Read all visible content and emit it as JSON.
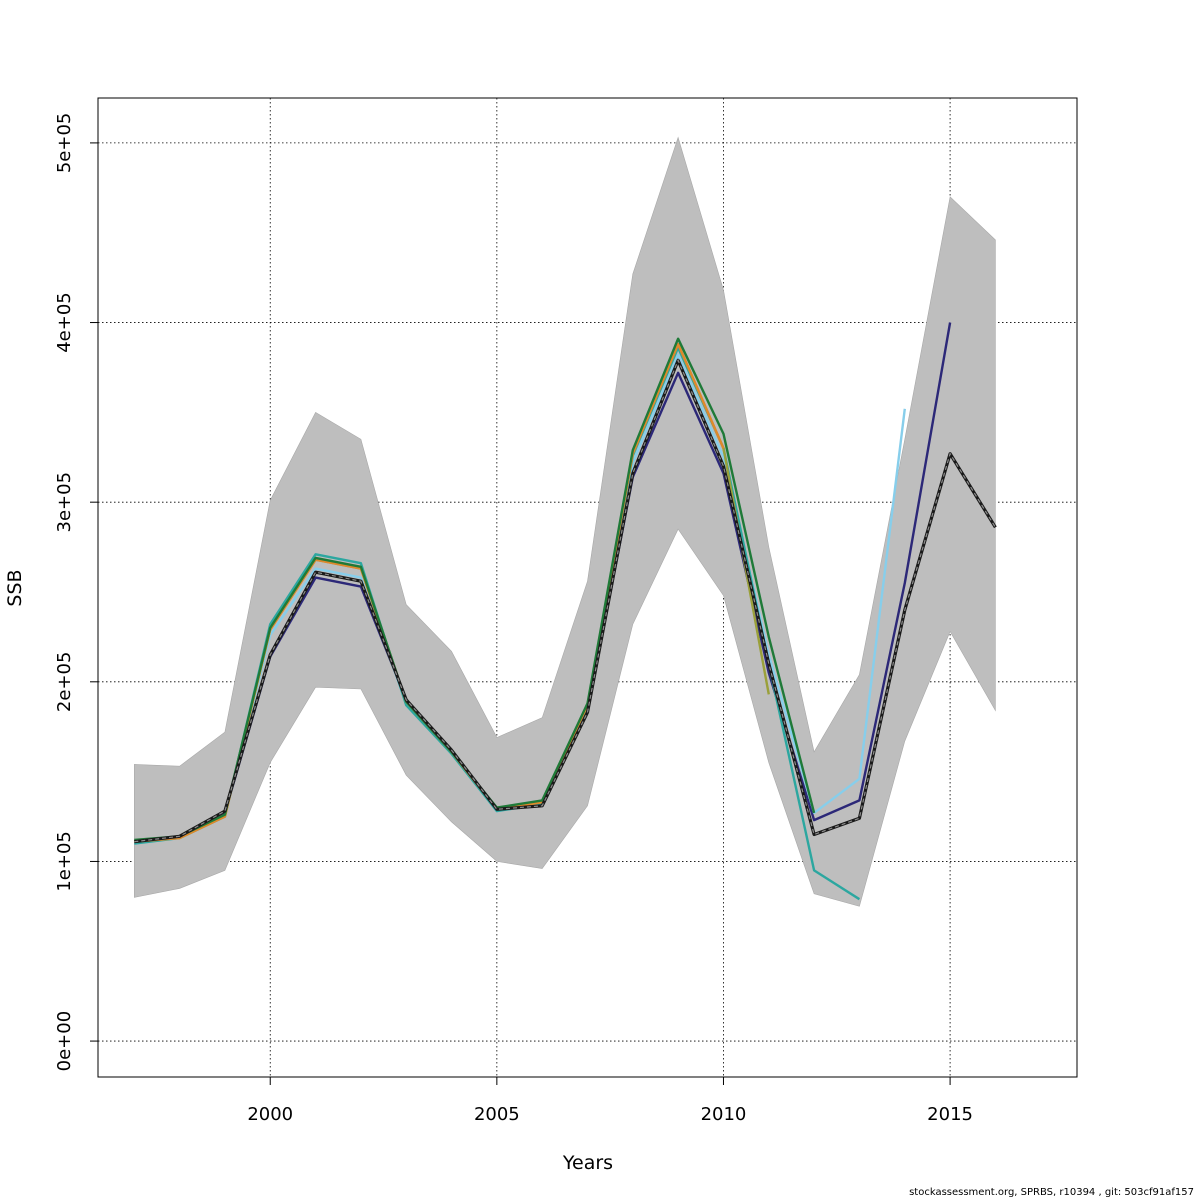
{
  "chart_data": {
    "type": "line",
    "xlabel": "Years",
    "ylabel": "SSB",
    "xlim": [
      1996.2,
      2017.8
    ],
    "ylim": [
      -20000,
      525000
    ],
    "x_ticks": [
      2000,
      2005,
      2010,
      2015
    ],
    "x_tick_labels": [
      "2000",
      "2005",
      "2010",
      "2015"
    ],
    "y_ticks": [
      0,
      100000,
      200000,
      300000,
      400000,
      500000
    ],
    "y_tick_labels": [
      "0e+00",
      "1e+05",
      "2e+05",
      "3e+05",
      "4e+05",
      "5e+05"
    ],
    "grid": true,
    "confidence_band": {
      "color": "#bebebe",
      "x": [
        1997,
        1998,
        1999,
        2000,
        2001,
        2002,
        2003,
        2004,
        2005,
        2006,
        2007,
        2008,
        2009,
        2010,
        2011,
        2012,
        2013,
        2014,
        2015,
        2016
      ],
      "lower": [
        80000,
        85000,
        95000,
        155000,
        197000,
        196000,
        148000,
        122000,
        100000,
        96000,
        131000,
        232000,
        285000,
        248000,
        155000,
        82000,
        75000,
        167000,
        228000,
        184000
      ],
      "upper": [
        154000,
        153000,
        172000,
        301000,
        350000,
        335000,
        243000,
        217000,
        169000,
        180000,
        256000,
        427000,
        503000,
        418000,
        275000,
        161000,
        204000,
        335000,
        470000,
        446000
      ]
    },
    "series": [
      {
        "color": "#1a1a1a",
        "dashed": true,
        "x": [
          1997,
          1998,
          1999,
          2000,
          2001,
          2002,
          2003,
          2004,
          2005,
          2006,
          2007,
          2008,
          2009,
          2010,
          2011,
          2012,
          2013,
          2014,
          2015,
          2016
        ],
        "values": [
          111000,
          114000,
          128000,
          215000,
          261000,
          256000,
          190000,
          162000,
          129000,
          131000,
          183000,
          316000,
          379000,
          320000,
          210000,
          115000,
          124000,
          240000,
          327000,
          286000
        ]
      },
      {
        "color": "#2c2878",
        "x": [
          1997,
          1998,
          1999,
          2000,
          2001,
          2002,
          2003,
          2004,
          2005,
          2006,
          2007,
          2008,
          2009,
          2010,
          2011,
          2012,
          2013,
          2014,
          2015
        ],
        "values": [
          111000,
          114000,
          127000,
          214000,
          258000,
          253000,
          190000,
          161000,
          129000,
          132000,
          184000,
          314000,
          372000,
          316000,
          205000,
          123000,
          134000,
          255000,
          400000
        ]
      },
      {
        "color": "#87ceeb",
        "x": [
          1997,
          1998,
          1999,
          2000,
          2001,
          2002,
          2003,
          2004,
          2005,
          2006,
          2007,
          2008,
          2009,
          2010,
          2011,
          2012,
          2013,
          2014
        ],
        "values": [
          110000,
          113000,
          125000,
          226000,
          263000,
          258000,
          188000,
          160000,
          128000,
          132000,
          185000,
          322000,
          382000,
          325000,
          215000,
          127000,
          146000,
          352000
        ]
      },
      {
        "color": "#2ca7a0",
        "x": [
          1997,
          1998,
          1999,
          2000,
          2001,
          2002,
          2003,
          2004,
          2005,
          2006,
          2007,
          2008,
          2009,
          2010,
          2011,
          2012,
          2013
        ],
        "values": [
          110000,
          113000,
          125000,
          232000,
          271000,
          266000,
          187000,
          160000,
          128000,
          132000,
          186000,
          326000,
          386000,
          330000,
          210000,
          95000,
          79000
        ]
      },
      {
        "color": "#9aa03a",
        "x": [
          1997,
          1998,
          1999,
          2000,
          2001,
          2002,
          2003,
          2004,
          2005,
          2006,
          2007,
          2008,
          2009,
          2010,
          2011
        ],
        "values": [
          111000,
          113000,
          125000,
          229000,
          268000,
          263000,
          189000,
          161000,
          129000,
          133000,
          187000,
          327000,
          388000,
          330000,
          193000
        ]
      },
      {
        "color": "#e0882b",
        "x": [
          1997,
          1998,
          1999,
          2000,
          2001,
          2002,
          2003,
          2004,
          2005,
          2006,
          2007,
          2008,
          2009,
          2010
        ],
        "values": [
          111000,
          113000,
          125000,
          229000,
          268000,
          263000,
          189000,
          161000,
          129000,
          133000,
          187000,
          327000,
          388000,
          330000
        ]
      },
      {
        "color": "#1f7a38",
        "x": [
          1997,
          1998,
          1999,
          2000,
          2001,
          2002,
          2003,
          2004,
          2005,
          2006,
          2007,
          2008,
          2009,
          2010,
          2011,
          2012
        ],
        "values": [
          112000,
          114000,
          126000,
          230000,
          269000,
          264000,
          189000,
          161000,
          130000,
          134000,
          188000,
          329000,
          391000,
          338000,
          225000,
          127000
        ]
      }
    ]
  },
  "footer_text": "stockassessment.org, SPRBS, r10394 , git: 503cf91af157"
}
